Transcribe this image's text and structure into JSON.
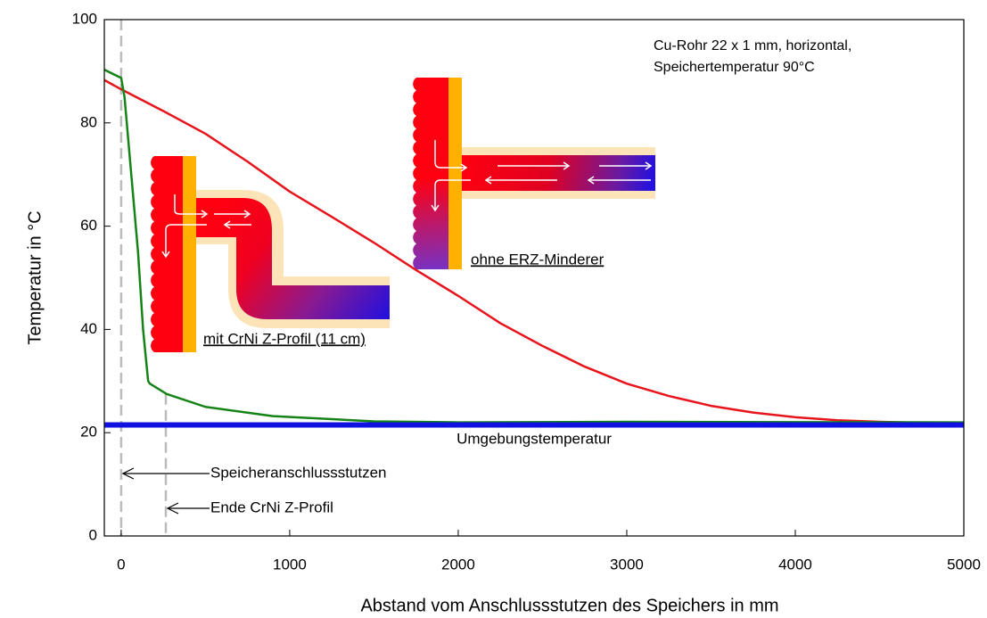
{
  "chart_data": {
    "type": "line",
    "xlabel": "Abstand vom Anschlussstutzen des Speichers in mm",
    "ylabel": "Temperatur in °C",
    "xlim": [
      -100,
      5000
    ],
    "ylim": [
      0,
      100
    ],
    "xticks": [
      0,
      1000,
      2000,
      3000,
      4000,
      5000
    ],
    "yticks": [
      0,
      20,
      40,
      60,
      80,
      100
    ],
    "note": [
      "Cu-Rohr 22 x 1 mm, horizontal,",
      "Speichertemperatur 90°C"
    ],
    "series": [
      {
        "name": "ohne ERZ-Minderer",
        "color": "#e8141c",
        "x": [
          -100,
          0,
          250,
          500,
          750,
          1000,
          1250,
          1500,
          1750,
          2000,
          2250,
          2500,
          2750,
          3000,
          3250,
          3500,
          3750,
          4000,
          4250,
          4500,
          4750,
          5000
        ],
        "values": [
          88.3,
          86.5,
          82.3,
          77.9,
          72.5,
          66.7,
          61.8,
          56.8,
          51.5,
          46.5,
          41.2,
          36.8,
          32.8,
          29.5,
          27.1,
          25.2,
          23.9,
          23.0,
          22.4,
          22.1,
          21.9,
          21.8
        ]
      },
      {
        "name": "mit CrNi Z-Profil (11 cm)",
        "color": "#168316",
        "x": [
          -100,
          0,
          20,
          60,
          100,
          130,
          160,
          170,
          270,
          500,
          900,
          1500,
          2000,
          3000,
          5000
        ],
        "values": [
          90.3,
          88.7,
          85,
          70,
          55,
          40,
          30,
          29.5,
          27.5,
          25,
          23.2,
          22.2,
          22,
          22.1,
          22
        ]
      },
      {
        "name": "Umgebungstemperatur",
        "color": "#1010e0",
        "x": [
          -100,
          5000
        ],
        "values": [
          21.5,
          21.5
        ]
      }
    ],
    "markers": [
      {
        "x": 0,
        "label": "Speicheranschlussstutzen"
      },
      {
        "x": 265,
        "label": "Ende CrNi Z-Profil"
      }
    ],
    "grid": false
  }
}
